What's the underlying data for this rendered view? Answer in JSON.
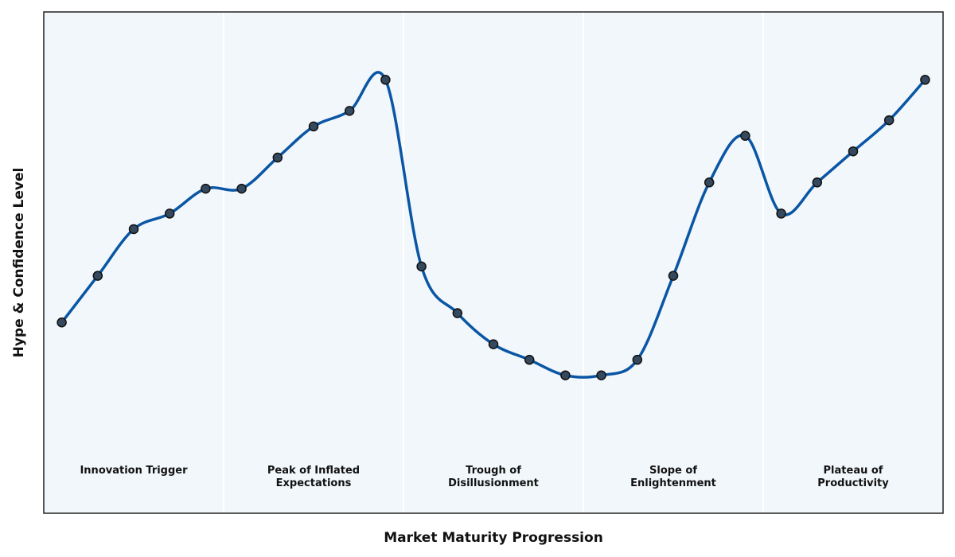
{
  "chart_data": {
    "type": "line",
    "title": "",
    "xlabel": "Market Maturity Progression",
    "ylabel": "Hype & Confidence Level",
    "grid": false,
    "legend": "none",
    "ylim": [
      0,
      100
    ],
    "x": [
      1,
      2,
      3,
      4,
      5,
      6,
      7,
      8,
      9,
      10,
      11,
      12,
      13,
      14,
      15,
      16,
      17,
      18,
      19,
      20,
      21,
      22,
      23,
      24,
      25
    ],
    "series": [
      {
        "values": [
          25,
          40,
          55,
          60,
          68,
          68,
          78,
          88,
          93,
          103,
          43,
          28,
          18,
          13,
          8,
          8,
          13,
          40,
          70,
          85,
          60,
          70,
          80,
          90,
          103
        ]
      }
    ],
    "phases": [
      {
        "label": [
          "Innovation Trigger"
        ],
        "start": 0.5,
        "end": 5.5
      },
      {
        "label": [
          "Peak of Inflated",
          "Expectations"
        ],
        "start": 5.5,
        "end": 10.5
      },
      {
        "label": [
          "Trough of",
          "Disillusionment"
        ],
        "start": 10.5,
        "end": 15.5
      },
      {
        "label": [
          "Slope of",
          "Enlightenment"
        ],
        "start": 15.5,
        "end": 20.5
      },
      {
        "label": [
          "Plateau of",
          "Productivity"
        ],
        "start": 20.5,
        "end": 25.5
      }
    ],
    "colors": {
      "line": "#0a56a4",
      "marker_fill": "#34495e",
      "marker_edge": "#111111",
      "plot_background": "#f2f7fb",
      "phase_divider": "#ffffff",
      "frame": "#222222"
    }
  }
}
